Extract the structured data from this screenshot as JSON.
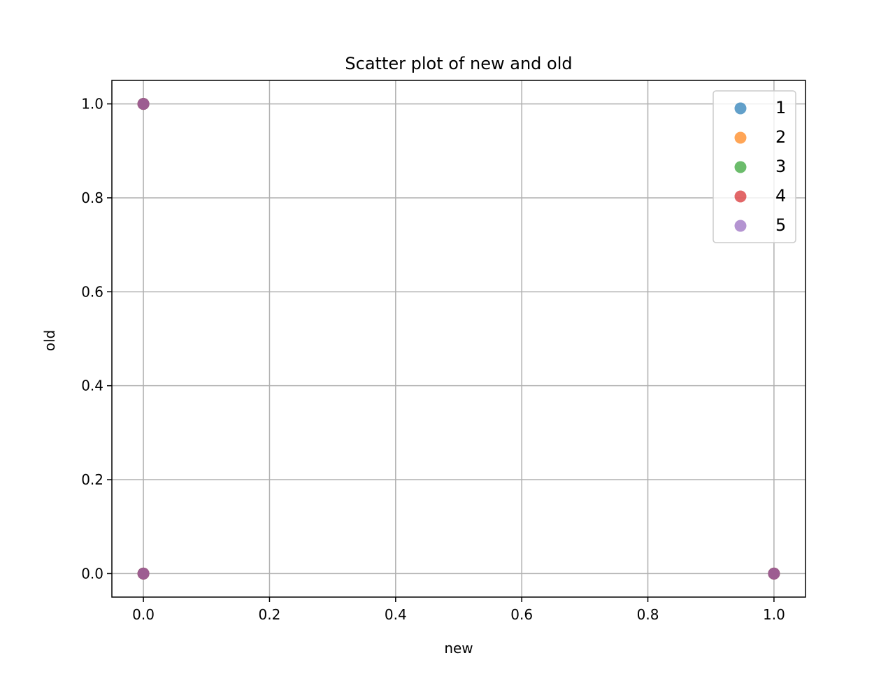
{
  "chart_data": {
    "type": "scatter",
    "title": "Scatter plot of new and old",
    "xlabel": "new",
    "ylabel": "old",
    "xlim": [
      -0.05,
      1.05
    ],
    "ylim": [
      -0.05,
      1.05
    ],
    "xticks": [
      0.0,
      0.2,
      0.4,
      0.6,
      0.8,
      1.0
    ],
    "yticks": [
      0.0,
      0.2,
      0.4,
      0.6,
      0.8,
      1.0
    ],
    "xtick_labels": [
      "0.0",
      "0.2",
      "0.4",
      "0.6",
      "0.8",
      "1.0"
    ],
    "ytick_labels": [
      "0.0",
      "0.2",
      "0.4",
      "0.6",
      "0.8",
      "1.0"
    ],
    "grid": true,
    "legend_position": "top-right",
    "series": [
      {
        "name": "1",
        "color": "#1f77b4",
        "points": [
          [
            0,
            1
          ],
          [
            0,
            0
          ],
          [
            1,
            0
          ]
        ]
      },
      {
        "name": "2",
        "color": "#ff7f0e",
        "points": [
          [
            0,
            1
          ],
          [
            0,
            0
          ],
          [
            1,
            0
          ]
        ]
      },
      {
        "name": "3",
        "color": "#2ca02c",
        "points": [
          [
            0,
            1
          ],
          [
            0,
            0
          ],
          [
            1,
            0
          ]
        ]
      },
      {
        "name": "4",
        "color": "#d62728",
        "points": [
          [
            0,
            1
          ],
          [
            0,
            0
          ],
          [
            1,
            0
          ]
        ]
      },
      {
        "name": "5",
        "color": "#9467bd",
        "points": [
          [
            0,
            1
          ],
          [
            0,
            0
          ],
          [
            1,
            0
          ]
        ]
      }
    ]
  }
}
